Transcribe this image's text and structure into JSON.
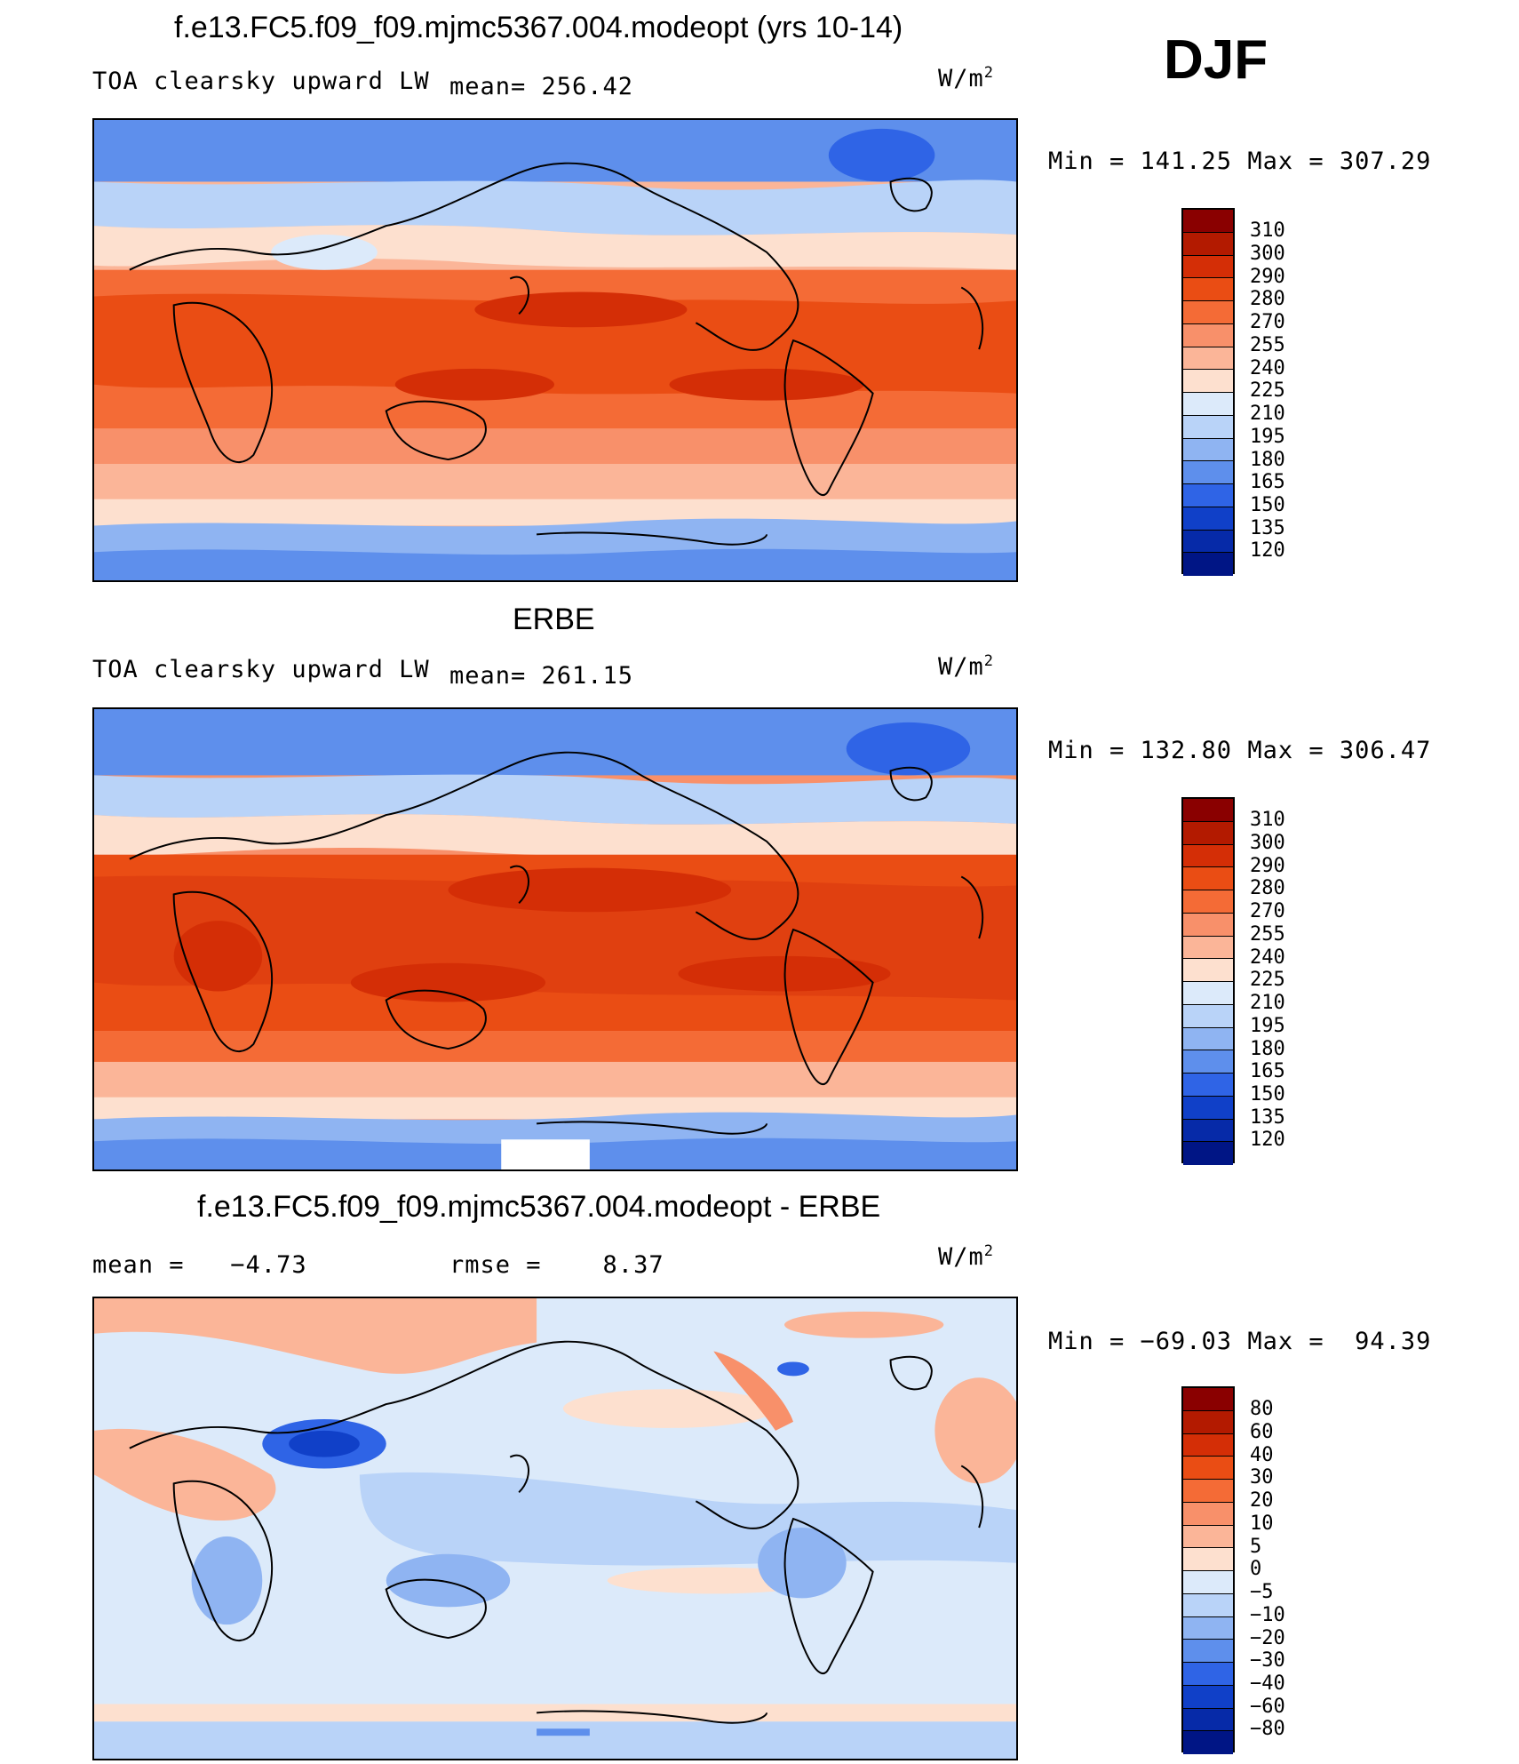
{
  "season": "DJF",
  "units": "W/m",
  "units_exp": "2",
  "panels": [
    {
      "title": "f.e13.FC5.f09_f09.mjmc5367.004.modeopt (yrs 10-14)",
      "variable": "TOA clearsky upward LW",
      "stat_text": "mean= 256.42",
      "minmax": "Min = 141.25 Max = 307.29"
    },
    {
      "title": "ERBE",
      "variable": "TOA clearsky upward LW",
      "stat_text": "mean= 261.15",
      "minmax": "Min = 132.80 Max = 306.47"
    },
    {
      "title": "f.e13.FC5.f09_f09.mjmc5367.004.modeopt - ERBE",
      "mean_text": "mean =   −4.73",
      "rmse_text": "rmse =    8.37",
      "minmax": "Min = −69.03 Max =  94.39"
    }
  ],
  "colorbar_abs": {
    "labels": [
      "310",
      "300",
      "290",
      "280",
      "270",
      "255",
      "240",
      "225",
      "210",
      "195",
      "180",
      "165",
      "150",
      "135",
      "120"
    ],
    "colors": [
      "#8a0000",
      "#b31a00",
      "#d42e06",
      "#ea4d14",
      "#f46b36",
      "#f8906a",
      "#fbb598",
      "#fde0cf",
      "#dceafa",
      "#b9d3f8",
      "#8fb4f2",
      "#5e8fec",
      "#2f64e6",
      "#1040c8",
      "#062aa8",
      "#001585"
    ]
  },
  "colorbar_diff": {
    "labels": [
      "80",
      "60",
      "40",
      "30",
      "20",
      "10",
      "5",
      "0",
      "−5",
      "−10",
      "−20",
      "−30",
      "−40",
      "−60",
      "−80"
    ],
    "colors": [
      "#8a0000",
      "#b31a00",
      "#d42e06",
      "#ea4d14",
      "#f46b36",
      "#f8906a",
      "#fbb598",
      "#fde0cf",
      "#dceafa",
      "#b9d3f8",
      "#8fb4f2",
      "#5e8fec",
      "#2f64e6",
      "#1040c8",
      "#062aa8",
      "#001585"
    ]
  }
}
